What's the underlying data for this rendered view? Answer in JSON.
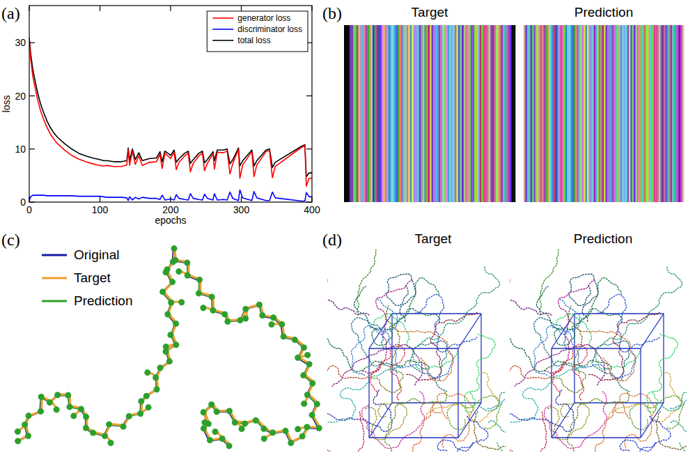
{
  "chart_data": {
    "type": "line",
    "xlabel": "epochs",
    "ylabel": "loss",
    "x": [
      0,
      2,
      5,
      8,
      12,
      16,
      20,
      25,
      30,
      35,
      40,
      50,
      60,
      70,
      80,
      90,
      100,
      105,
      110,
      120,
      130,
      138,
      140,
      142,
      146,
      150,
      155,
      160,
      170,
      180,
      185,
      188,
      192,
      200,
      205,
      208,
      212,
      220,
      225,
      228,
      232,
      240,
      245,
      248,
      252,
      260,
      262,
      266,
      275,
      280,
      284,
      288,
      296,
      298,
      302,
      315,
      318,
      322,
      335,
      340,
      344,
      348,
      385,
      390,
      392,
      396,
      400
    ],
    "xlim": [
      0,
      400
    ],
    "ylim": [
      0,
      37
    ],
    "xticks": [
      0,
      100,
      200,
      300,
      400
    ],
    "yticks": [
      0,
      10,
      20,
      30
    ],
    "legend": "upper right",
    "series": [
      {
        "name": "generator loss",
        "color": "#ff0000",
        "values": [
          30.7,
          27,
          23.7,
          21.7,
          19.2,
          17.2,
          15.7,
          14.1,
          12.8,
          11.8,
          11,
          9.8,
          8.8,
          8.1,
          7.6,
          7.2,
          6.9,
          6.8,
          6.9,
          6.7,
          6.7,
          7,
          9.9,
          6.9,
          9.6,
          7.1,
          8.7,
          6.9,
          7.5,
          7.6,
          9,
          6.3,
          9.2,
          8.2,
          9.4,
          6.1,
          7.5,
          8.7,
          9.2,
          5.7,
          7.3,
          8.7,
          9.2,
          5.9,
          7.3,
          9.1,
          6.2,
          9.4,
          9.3,
          9.6,
          5.3,
          7.3,
          9.9,
          4.5,
          7,
          9.5,
          4.8,
          7,
          9.5,
          9.7,
          4.6,
          6.7,
          10.3,
          10.6,
          3,
          4.5,
          4.5
        ]
      },
      {
        "name": "discriminator loss",
        "color": "#0000ff",
        "values": [
          0.3,
          1,
          1.3,
          1.3,
          1.3,
          1.3,
          1.3,
          1.2,
          1.2,
          1.2,
          1.2,
          1.2,
          1.2,
          1.1,
          1.1,
          1.1,
          1.1,
          1,
          0.9,
          0.9,
          0.9,
          0.8,
          0.3,
          1,
          0.4,
          0.9,
          0.6,
          0.9,
          0.7,
          0.7,
          0.5,
          1.3,
          0.4,
          0.6,
          0.4,
          1.4,
          0.7,
          0.5,
          0.4,
          1.6,
          0.7,
          0.5,
          0.4,
          1.5,
          0.7,
          0.4,
          1.6,
          0.4,
          0.5,
          0.4,
          1.9,
          0.7,
          0.3,
          2.3,
          0.8,
          0.3,
          2,
          0.8,
          0.3,
          0.3,
          1.9,
          0.8,
          0.2,
          0.2,
          1.8,
          1,
          1
        ]
      },
      {
        "name": "total loss",
        "color": "#000000",
        "values": [
          31,
          28,
          25,
          23,
          20.5,
          18.5,
          17,
          15.3,
          14,
          13,
          12.2,
          11,
          10,
          9.2,
          8.7,
          8.3,
          8,
          7.8,
          7.8,
          7.6,
          7.6,
          7.8,
          10.2,
          7.9,
          10,
          8,
          9.3,
          7.8,
          8.2,
          8.3,
          9.5,
          7.6,
          9.6,
          8.8,
          9.8,
          7.5,
          8.2,
          9.2,
          9.6,
          7.3,
          8,
          9.2,
          9.6,
          7.4,
          8,
          9.5,
          7.8,
          9.8,
          9.8,
          10,
          7.2,
          8,
          10.2,
          6.8,
          7.8,
          9.8,
          6.8,
          7.8,
          9.8,
          10,
          6.5,
          7.5,
          10.5,
          10.8,
          4.8,
          5.5,
          5.5
        ]
      }
    ]
  },
  "panel_labels": [
    "(a)",
    "(b)",
    "(c)",
    "(d)"
  ],
  "panel_b": {
    "titles": [
      "Target",
      "Prediction"
    ]
  },
  "panel_c": {
    "legend": [
      {
        "name": "Original",
        "color": "#1a1aa6"
      },
      {
        "name": "Target",
        "color": "#f0a030"
      },
      {
        "name": "Prediction",
        "color": "#2ca02c"
      }
    ]
  },
  "panel_d": {
    "titles": [
      "Target",
      "Prediction"
    ]
  }
}
